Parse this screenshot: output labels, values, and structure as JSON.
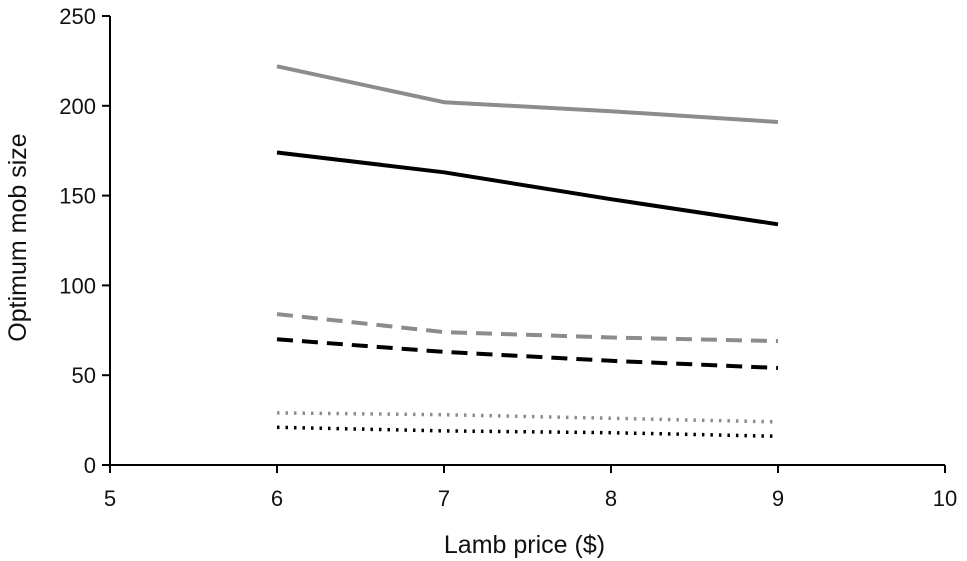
{
  "chart_data": {
    "type": "line",
    "title": "",
    "xlabel": "Lamb price ($)",
    "ylabel": "Optimum mob size",
    "xlim": [
      5,
      10
    ],
    "ylim": [
      0,
      250
    ],
    "xticks": [
      5,
      6,
      7,
      8,
      9,
      10
    ],
    "yticks": [
      0,
      50,
      100,
      150,
      200,
      250
    ],
    "grid": false,
    "legend": "none",
    "x": [
      6,
      7,
      8,
      9
    ],
    "series": [
      {
        "color": "#8c8c8c",
        "style": "solid",
        "values": [
          222,
          202,
          197,
          191
        ]
      },
      {
        "color": "#000000",
        "style": "solid",
        "values": [
          174,
          163,
          148,
          134
        ]
      },
      {
        "color": "#8c8c8c",
        "style": "dashed",
        "values": [
          84,
          74,
          71,
          69
        ]
      },
      {
        "color": "#000000",
        "style": "dashed",
        "values": [
          70,
          63,
          58,
          54
        ]
      },
      {
        "color": "#8c8c8c",
        "style": "dotted",
        "values": [
          29,
          28,
          26,
          24
        ]
      },
      {
        "color": "#000000",
        "style": "dotted",
        "values": [
          21,
          19,
          18,
          16
        ]
      }
    ]
  }
}
